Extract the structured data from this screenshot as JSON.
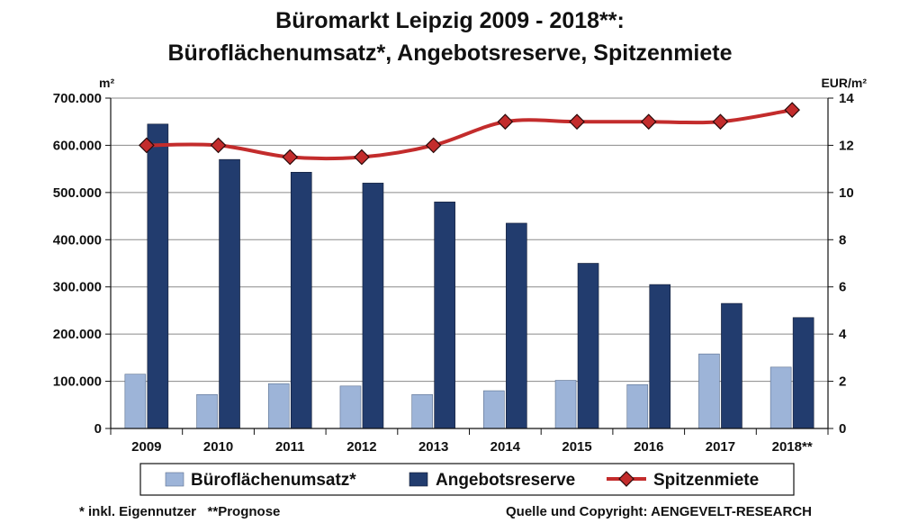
{
  "chart_data": {
    "type": "bar",
    "title": "Büromarkt Leipzig 2009 - 2018**:",
    "subtitle": "Büroflächenumsatz*, Angebotsreserve, Spitzenmiete",
    "categories": [
      "2009",
      "2010",
      "2011",
      "2012",
      "2013",
      "2014",
      "2015",
      "2016",
      "2017",
      "2018**"
    ],
    "series": [
      {
        "name": "Büroflächenumsatz*",
        "type": "bar",
        "axis": "left",
        "values": [
          115000,
          72000,
          95000,
          90000,
          72000,
          80000,
          102000,
          93000,
          158000,
          130000
        ]
      },
      {
        "name": "Angebotsreserve",
        "type": "bar",
        "axis": "left",
        "values": [
          645000,
          570000,
          543000,
          520000,
          480000,
          435000,
          350000,
          305000,
          265000,
          235000
        ]
      },
      {
        "name": "Spitzenmiete",
        "type": "line",
        "axis": "right",
        "values": [
          12.0,
          12.0,
          11.5,
          11.5,
          12.0,
          13.0,
          13.0,
          13.0,
          13.0,
          13.5
        ]
      }
    ],
    "y_left": {
      "unit": "m²",
      "ylim": [
        0,
        700000
      ],
      "tick_labels": [
        "0",
        "100.000",
        "200.000",
        "300.000",
        "400.000",
        "500.000",
        "600.000",
        "700.000"
      ]
    },
    "y_right": {
      "unit": "EUR/m²",
      "ylim": [
        0,
        14
      ],
      "tick_labels": [
        "0",
        "2",
        "4",
        "6",
        "8",
        "10",
        "12",
        "14"
      ]
    },
    "grid": true,
    "legend_position": "bottom",
    "colors": {
      "umsatz": "#9db4d8",
      "reserve": "#223c6e",
      "miete": "#c32c2c",
      "marker": "#c32c2c"
    }
  },
  "footnote": "* inkl. Eigennutzer   **Prognose",
  "source": "Quelle und Copyright: AENGEVELT-RESEARCH"
}
